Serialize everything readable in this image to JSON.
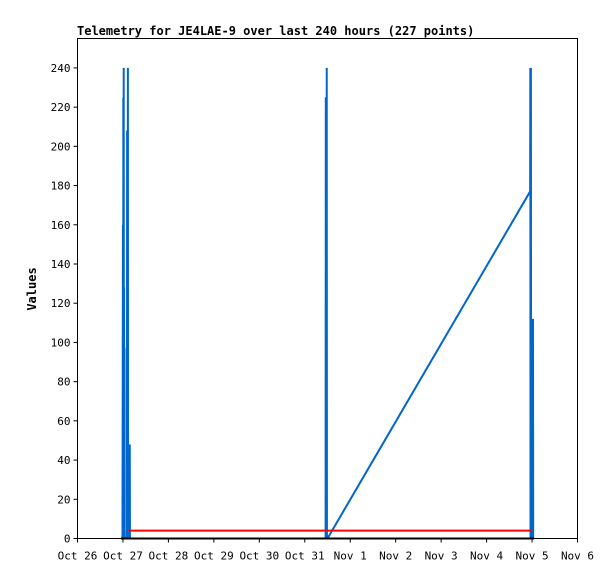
{
  "chart_data": {
    "type": "line",
    "title": "Telemetry for JE4LAE-9 over last 240 hours (227 points)",
    "xlabel": "",
    "ylabel": "Values",
    "xlim": [
      "Oct 26 00:00",
      "Nov 6 00:00"
    ],
    "ylim": [
      0,
      255
    ],
    "x_ticks": [
      "Oct 26",
      "Oct 27",
      "Oct 28",
      "Oct 29",
      "Oct 30",
      "Oct 31",
      "Nov 1",
      "Nov 2",
      "Nov 3",
      "Nov 4",
      "Nov 5",
      "Nov 6"
    ],
    "y_ticks": [
      0,
      20,
      40,
      60,
      80,
      100,
      120,
      140,
      160,
      180,
      200,
      220,
      240
    ],
    "grid": false,
    "legend": "none",
    "series": [
      {
        "color": "#0066cc",
        "points": [
          [
            "Oct 26 23:45",
            0
          ],
          [
            "Oct 27 00:00",
            160
          ],
          [
            "Oct 27 00:06",
            0
          ],
          [
            "Oct 27 00:12",
            225
          ],
          [
            "Oct 27 00:18",
            0
          ],
          [
            "Oct 27 00:24",
            240
          ],
          [
            "Oct 27 00:30",
            0
          ],
          [
            "Oct 27 00:36",
            128
          ],
          [
            "Oct 27 00:42",
            0
          ],
          [
            "Oct 27 00:48",
            97
          ],
          [
            "Oct 27 00:54",
            0
          ],
          [
            "Oct 27 02:00",
            0
          ],
          [
            "Oct 27 02:06",
            4
          ],
          [
            "Oct 27 02:12",
            208
          ],
          [
            "Oct 27 02:18",
            0
          ],
          [
            "Oct 27 02:30",
            0
          ],
          [
            "Oct 27 02:36",
            240
          ],
          [
            "Oct 27 02:42",
            0
          ],
          [
            "Oct 27 03:30",
            0
          ],
          [
            "Oct 27 03:36",
            48
          ],
          [
            "Oct 27 03:42",
            0
          ],
          [
            "Oct 31 11:00",
            0
          ],
          [
            "Oct 31 11:06",
            225
          ],
          [
            "Oct 31 11:12",
            0
          ],
          [
            "Oct 31 11:18",
            225
          ],
          [
            "Oct 31 11:24",
            0
          ],
          [
            "Oct 31 11:36",
            240
          ],
          [
            "Oct 31 11:42",
            0
          ],
          [
            "Oct 31 12:00",
            0
          ],
          [
            "Nov 4 23:00",
            177
          ],
          [
            "Nov 4 23:06",
            240
          ],
          [
            "Nov 4 23:12",
            0
          ],
          [
            "Nov 4 23:24",
            240
          ],
          [
            "Nov 4 23:30",
            0
          ],
          [
            "Nov 5 00:00",
            32
          ],
          [
            "Nov 5 00:12",
            0
          ],
          [
            "Nov 5 00:30",
            112
          ],
          [
            "Nov 5 00:36",
            0
          ]
        ]
      },
      {
        "color": "#ff0000",
        "points": [
          [
            "Oct 27 03:00",
            4
          ],
          [
            "Nov 5 00:00",
            4
          ]
        ]
      },
      {
        "color": "#000000",
        "points": [
          [
            "Oct 26 23:00",
            0
          ],
          [
            "Nov 5 01:00",
            0
          ]
        ]
      }
    ]
  }
}
